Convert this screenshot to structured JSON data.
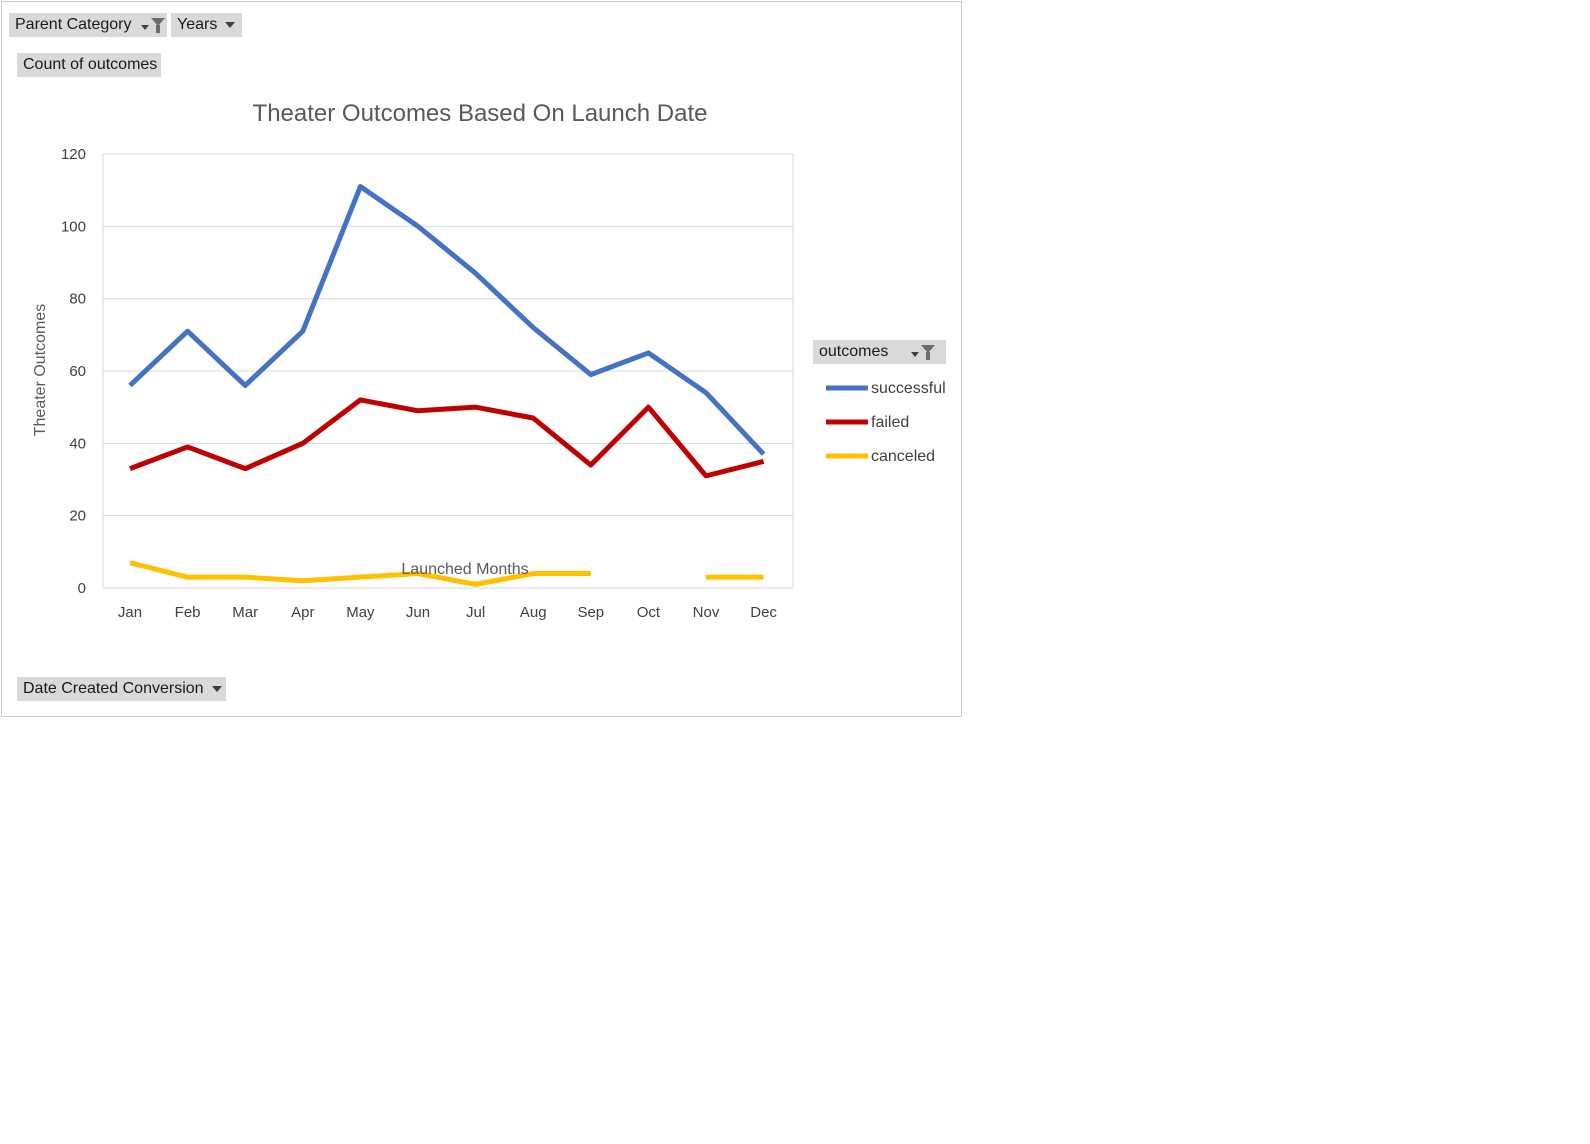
{
  "filters": {
    "parent_category": "Parent Category",
    "years": "Years",
    "values_field": "Count of outcomes",
    "row_field": "Date Created Conversion",
    "legend_field": "outcomes"
  },
  "chart_data": {
    "type": "line",
    "title": "Theater Outcomes Based On Launch Date",
    "xlabel": "Launched Months",
    "ylabel": "Theater Outcomes",
    "categories": [
      "Jan",
      "Feb",
      "Mar",
      "Apr",
      "May",
      "Jun",
      "Jul",
      "Aug",
      "Sep",
      "Oct",
      "Nov",
      "Dec"
    ],
    "ylim": [
      0,
      120
    ],
    "yticks": [
      0,
      20,
      40,
      60,
      80,
      100,
      120
    ],
    "grid": true,
    "legend": "right",
    "series": [
      {
        "name": "successful",
        "color": "#4472c4",
        "values": [
          56,
          71,
          56,
          71,
          111,
          100,
          87,
          72,
          59,
          65,
          54,
          37
        ]
      },
      {
        "name": "failed",
        "color": "#c00000",
        "values": [
          33,
          39,
          33,
          40,
          52,
          49,
          50,
          47,
          34,
          50,
          31,
          35
        ]
      },
      {
        "name": "canceled",
        "color": "#ffc000",
        "values": [
          7,
          3,
          3,
          2,
          3,
          4,
          1,
          4,
          4,
          null,
          3,
          3
        ]
      }
    ]
  }
}
